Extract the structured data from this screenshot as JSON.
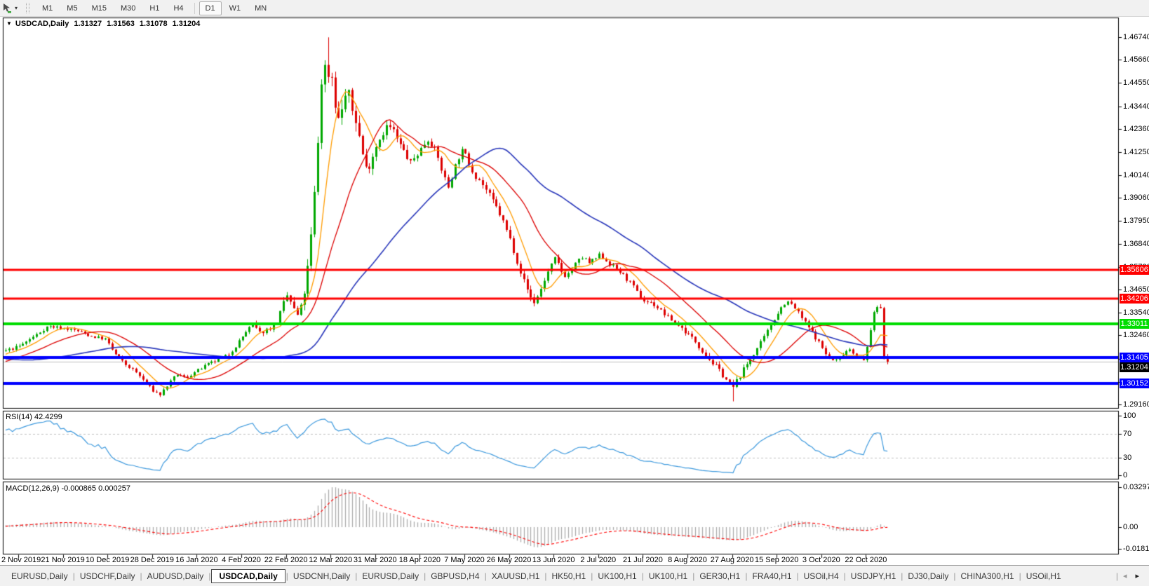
{
  "icons": {
    "collapse": "▼",
    "caret_down": "▾",
    "tab_prev": "◂",
    "tab_next": "▸"
  },
  "toolbar": {
    "chart_icon_name": "chart-cursor-icon",
    "timeframes": [
      "M1",
      "M5",
      "M15",
      "M30",
      "H1",
      "H4",
      "D1",
      "W1",
      "MN"
    ],
    "active_timeframe": "D1"
  },
  "chart": {
    "symbol": "USDCAD,Daily",
    "ohlc": {
      "open": "1.31327",
      "high": "1.31563",
      "low": "1.31078",
      "close": "1.31204"
    }
  },
  "indicators": {
    "rsi": {
      "label": "RSI(14) 42.4299",
      "period": 14,
      "value": 42.4299,
      "color": "#3e9ade",
      "levels": [
        70,
        30
      ],
      "axis_ticks": [
        100,
        70,
        30,
        0
      ]
    },
    "macd": {
      "label": "MACD(12,26,9) -0.000865 0.000257",
      "params": [
        12,
        26,
        9
      ],
      "value": -0.000865,
      "signal": 0.000257,
      "hist_color": "#ababab",
      "signal_color": "#ff0000",
      "axis_ticks": [
        "0.032972",
        "0.00",
        "-0.018154"
      ],
      "axis_tick_values": [
        0.032972,
        0,
        -0.018154
      ]
    }
  },
  "chart_data": {
    "type": "candlestick",
    "symbol": "USDCAD",
    "timeframe": "Daily",
    "candle_colors": {
      "up": "#00a800",
      "down": "#dd0000"
    },
    "y_axis": {
      "min": 1.2895,
      "max": 1.4769,
      "ticks": [
        "1.46740",
        "1.45660",
        "1.44550",
        "1.43440",
        "1.42360",
        "1.41250",
        "1.40140",
        "1.39060",
        "1.37950",
        "1.36840",
        "1.35730",
        "1.34650",
        "1.33540",
        "1.32460",
        "1.31350",
        "1.30240",
        "1.29160"
      ]
    },
    "x_axis": {
      "dates": [
        "2 Nov 2019",
        "21 Nov 2019",
        "10 Dec 2019",
        "28 Dec 2019",
        "16 Jan 2020",
        "4 Feb 2020",
        "22 Feb 2020",
        "12 Mar 2020",
        "31 Mar 2020",
        "18 Apr 2020",
        "7 May 2020",
        "26 May 2020",
        "13 Jun 2020",
        "2 Jul 2020",
        "21 Jul 2020",
        "8 Aug 2020",
        "27 Aug 2020",
        "15 Sep 2020",
        "3 Oct 2020",
        "22 Oct 2020"
      ]
    },
    "levels": [
      {
        "price": 1.35606,
        "label": "1.35606",
        "color": "#ff0000",
        "width": 3
      },
      {
        "price": 1.34206,
        "label": "1.34206",
        "color": "#ff0000",
        "width": 3
      },
      {
        "price": 1.33011,
        "label": "1.33011",
        "color": "#00dd00",
        "width": 4
      },
      {
        "price": 1.31405,
        "label": "1.31405",
        "color": "#0000ff",
        "width": 4
      },
      {
        "price": 1.30152,
        "label": "1.30152",
        "color": "#0000ff",
        "width": 4
      }
    ],
    "current_price": {
      "price": 1.31204,
      "label": "1.31204",
      "line_color": "#c0c0c0",
      "badge_bg": "#000000"
    },
    "moving_averages": [
      {
        "name": "ma-fast",
        "period": 8,
        "color": "#ff9c00"
      },
      {
        "name": "ma-mid",
        "period": 21,
        "color": "#dd0000"
      },
      {
        "name": "ma-slow",
        "period": 55,
        "color": "#2a38bb"
      }
    ],
    "extremes": {
      "high": 1.4674,
      "low": 1.2951,
      "sep_low": 1.293
    },
    "last_bar": {
      "open": 1.31327,
      "high": 1.31563,
      "low": 1.31078,
      "close": 1.31204
    },
    "price_path": [
      [
        8,
        1.3172
      ],
      [
        28,
        1.3195
      ],
      [
        50,
        1.3245
      ],
      [
        68,
        1.329
      ],
      [
        88,
        1.3282
      ],
      [
        108,
        1.327
      ],
      [
        130,
        1.3242
      ],
      [
        150,
        1.3228
      ],
      [
        163,
        1.316
      ],
      [
        178,
        1.3108
      ],
      [
        192,
        1.3075
      ],
      [
        205,
        1.3028
      ],
      [
        218,
        1.2982
      ],
      [
        228,
        1.2962
      ],
      [
        238,
        1.3005
      ],
      [
        252,
        1.306
      ],
      [
        265,
        1.3042
      ],
      [
        280,
        1.3075
      ],
      [
        295,
        1.3105
      ],
      [
        310,
        1.3128
      ],
      [
        325,
        1.3152
      ],
      [
        338,
        1.3205
      ],
      [
        350,
        1.3262
      ],
      [
        360,
        1.3298
      ],
      [
        370,
        1.3258
      ],
      [
        382,
        1.3278
      ],
      [
        394,
        1.3302
      ],
      [
        403,
        1.3388
      ],
      [
        410,
        1.3442
      ],
      [
        418,
        1.3372
      ],
      [
        426,
        1.333
      ],
      [
        433,
        1.3445
      ],
      [
        440,
        1.3595
      ],
      [
        446,
        1.3815
      ],
      [
        452,
        1.4098
      ],
      [
        457,
        1.4438
      ],
      [
        461,
        1.4552
      ],
      [
        466,
        1.449
      ],
      [
        471,
        1.453
      ],
      [
        477,
        1.4375
      ],
      [
        483,
        1.4268
      ],
      [
        489,
        1.436
      ],
      [
        495,
        1.4422
      ],
      [
        501,
        1.4335
      ],
      [
        508,
        1.427
      ],
      [
        514,
        1.416
      ],
      [
        521,
        1.4042
      ],
      [
        528,
        1.4075
      ],
      [
        535,
        1.4148
      ],
      [
        543,
        1.4205
      ],
      [
        552,
        1.4252
      ],
      [
        560,
        1.423
      ],
      [
        568,
        1.4168
      ],
      [
        577,
        1.412
      ],
      [
        585,
        1.407
      ],
      [
        593,
        1.4108
      ],
      [
        601,
        1.4145
      ],
      [
        609,
        1.4188
      ],
      [
        617,
        1.4155
      ],
      [
        625,
        1.4088
      ],
      [
        632,
        1.4012
      ],
      [
        639,
        1.3958
      ],
      [
        646,
        1.4032
      ],
      [
        653,
        1.4098
      ],
      [
        660,
        1.4135
      ],
      [
        668,
        1.4072
      ],
      [
        676,
        1.4018
      ],
      [
        684,
        1.3988
      ],
      [
        693,
        1.3942
      ],
      [
        702,
        1.3892
      ],
      [
        711,
        1.3838
      ],
      [
        720,
        1.3768
      ],
      [
        728,
        1.3698
      ],
      [
        736,
        1.3612
      ],
      [
        744,
        1.3528
      ],
      [
        752,
        1.3462
      ],
      [
        760,
        1.3398
      ],
      [
        768,
        1.3442
      ],
      [
        776,
        1.3512
      ],
      [
        784,
        1.3572
      ],
      [
        792,
        1.3618
      ],
      [
        799,
        1.3558
      ],
      [
        807,
        1.3528
      ],
      [
        815,
        1.3565
      ],
      [
        823,
        1.36
      ],
      [
        831,
        1.3622
      ],
      [
        839,
        1.3592
      ],
      [
        847,
        1.3608
      ],
      [
        855,
        1.3632
      ],
      [
        863,
        1.3608
      ],
      [
        871,
        1.3582
      ],
      [
        880,
        1.3562
      ],
      [
        890,
        1.3528
      ],
      [
        900,
        1.3492
      ],
      [
        909,
        1.3448
      ],
      [
        917,
        1.3412
      ],
      [
        925,
        1.3405
      ],
      [
        933,
        1.3392
      ],
      [
        941,
        1.3368
      ],
      [
        950,
        1.3338
      ],
      [
        958,
        1.3318
      ],
      [
        966,
        1.3298
      ],
      [
        974,
        1.3272
      ],
      [
        982,
        1.3248
      ],
      [
        990,
        1.3222
      ],
      [
        998,
        1.3185
      ],
      [
        1006,
        1.3152
      ],
      [
        1014,
        1.3118
      ],
      [
        1022,
        1.3092
      ],
      [
        1030,
        1.3058
      ],
      [
        1038,
        1.3022
      ],
      [
        1044,
        1.2992
      ],
      [
        1050,
        1.3028
      ],
      [
        1057,
        1.3068
      ],
      [
        1064,
        1.3105
      ],
      [
        1071,
        1.3142
      ],
      [
        1078,
        1.3178
      ],
      [
        1085,
        1.3212
      ],
      [
        1092,
        1.3252
      ],
      [
        1099,
        1.3298
      ],
      [
        1106,
        1.3342
      ],
      [
        1113,
        1.3378
      ],
      [
        1120,
        1.3408
      ],
      [
        1127,
        1.3398
      ],
      [
        1134,
        1.3372
      ],
      [
        1141,
        1.3338
      ],
      [
        1148,
        1.3305
      ],
      [
        1155,
        1.3272
      ],
      [
        1162,
        1.3238
      ],
      [
        1169,
        1.3205
      ],
      [
        1176,
        1.3162
      ],
      [
        1183,
        1.3132
      ],
      [
        1190,
        1.3122
      ],
      [
        1197,
        1.3142
      ],
      [
        1204,
        1.3168
      ],
      [
        1211,
        1.3182
      ],
      [
        1218,
        1.3158
      ],
      [
        1225,
        1.3135
      ],
      [
        1231,
        1.3122
      ],
      [
        1237,
        1.3208
      ],
      [
        1243,
        1.3322
      ],
      [
        1249,
        1.3382
      ],
      [
        1254,
        1.3395
      ],
      [
        1258,
        1.3338
      ],
      [
        1262,
        1.3225
      ],
      [
        1265,
        1.3132
      ],
      [
        1269,
        1.312
      ]
    ],
    "volatility_path": [
      [
        8,
        0.0014
      ],
      [
        300,
        0.0013
      ],
      [
        395,
        0.0022
      ],
      [
        430,
        0.0042
      ],
      [
        465,
        0.0072
      ],
      [
        500,
        0.0058
      ],
      [
        530,
        0.0042
      ],
      [
        570,
        0.0032
      ],
      [
        620,
        0.0028
      ],
      [
        680,
        0.0026
      ],
      [
        740,
        0.0028
      ],
      [
        800,
        0.0022
      ],
      [
        860,
        0.0018
      ],
      [
        920,
        0.0018
      ],
      [
        980,
        0.0018
      ],
      [
        1040,
        0.0022
      ],
      [
        1100,
        0.002
      ],
      [
        1160,
        0.0017
      ],
      [
        1220,
        0.0016
      ],
      [
        1269,
        0.0022
      ]
    ]
  },
  "tabs": {
    "items": [
      {
        "label": "EURUSD,Daily",
        "active": false
      },
      {
        "label": "USDCHF,Daily",
        "active": false
      },
      {
        "label": "AUDUSD,Daily",
        "active": false
      },
      {
        "label": "USDCAD,Daily",
        "active": true
      },
      {
        "label": "USDCNH,Daily",
        "active": false
      },
      {
        "label": "EURUSD,Daily",
        "active": false
      },
      {
        "label": "GBPUSD,H4",
        "active": false
      },
      {
        "label": "XAUUSD,H1",
        "active": false
      },
      {
        "label": "HK50,H1",
        "active": false
      },
      {
        "label": "UK100,H1",
        "active": false
      },
      {
        "label": "UK100,H1",
        "active": false
      },
      {
        "label": "GER30,H1",
        "active": false
      },
      {
        "label": "FRA40,H1",
        "active": false
      },
      {
        "label": "USOil,H4",
        "active": false
      },
      {
        "label": "USDJPY,H1",
        "active": false
      },
      {
        "label": "DJ30,Daily",
        "active": false
      },
      {
        "label": "CHINA300,H1",
        "active": false
      },
      {
        "label": "USOil,H1",
        "active": false
      }
    ]
  }
}
